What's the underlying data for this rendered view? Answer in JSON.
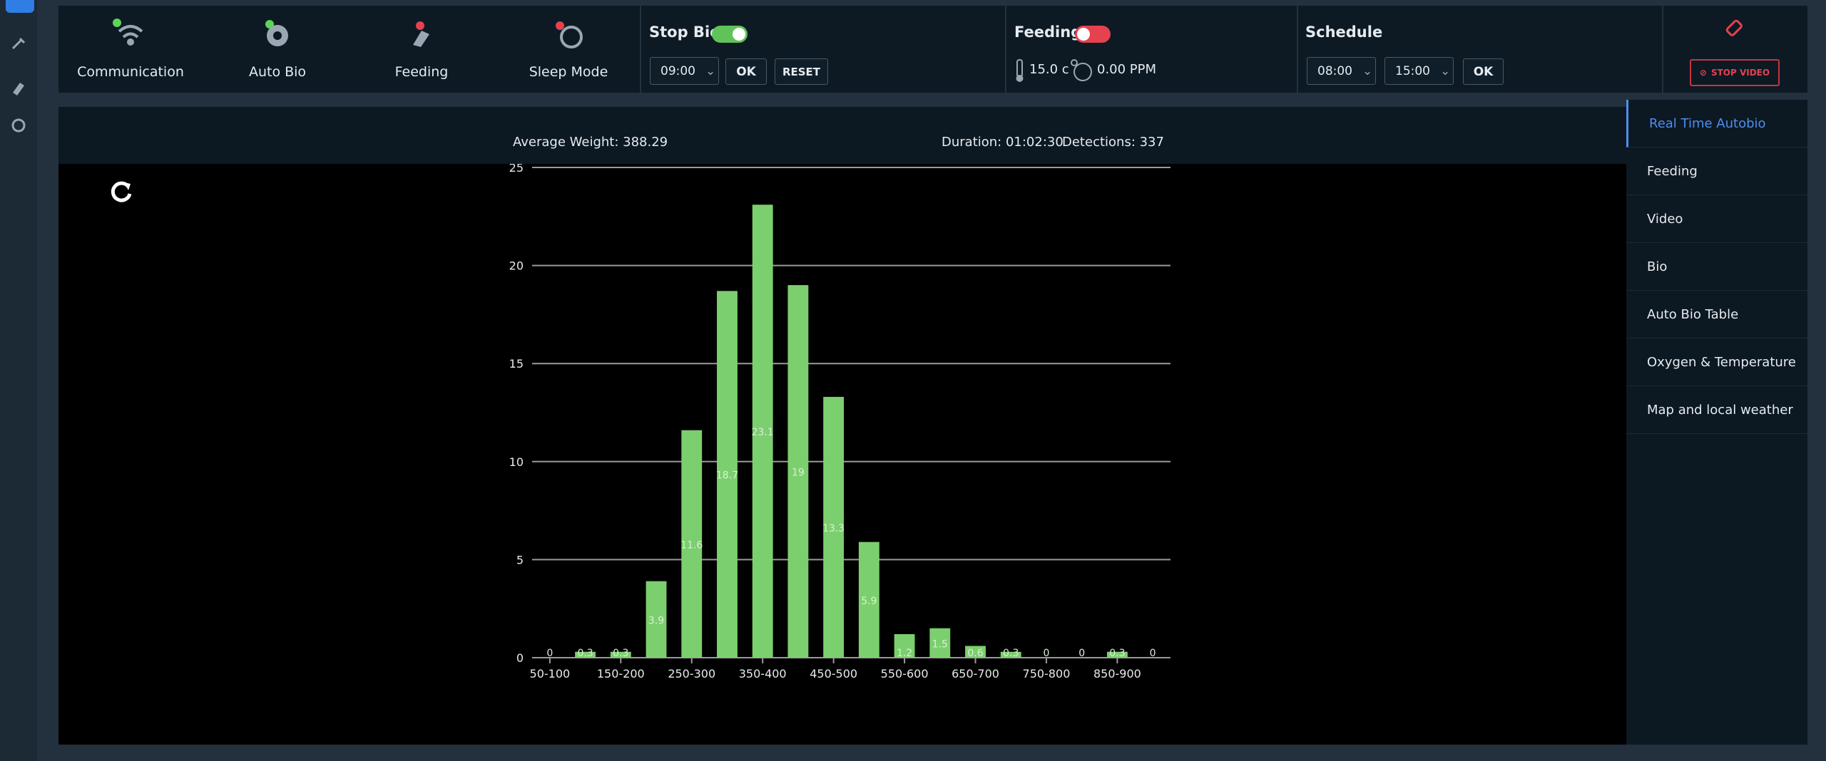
{
  "status": [
    {
      "label": "Communication"
    },
    {
      "label": "Auto Bio"
    },
    {
      "label": "Feeding"
    },
    {
      "label": "Sleep Mode"
    }
  ],
  "stop_bio": {
    "title": "Stop Bio",
    "time": "09:00",
    "ok": "OK",
    "reset": "RESET"
  },
  "feeding": {
    "title": "Feeding",
    "temperature": "15.0 c",
    "oxygen": "0.00 PPM"
  },
  "schedule": {
    "title": "Schedule",
    "start": "08:00",
    "end": "15:00",
    "ok": "OK"
  },
  "stop_video": "STOP VIDEO",
  "stats": {
    "average_weight": "Average Weight: 388.29",
    "duration": "Duration: 01:02:30",
    "detections": "Detections: 337"
  },
  "menu": [
    "Real Time Autobio",
    "Feeding",
    "Video",
    "Bio",
    "Auto Bio Table",
    "Oxygen & Temperature",
    "Map and local weather"
  ],
  "chart_data": {
    "type": "bar",
    "categories": [
      "50-100",
      null,
      "150-200",
      null,
      "250-300",
      null,
      "350-400",
      null,
      "450-500",
      null,
      "550-600",
      null,
      "650-700",
      null,
      "750-800",
      null,
      "850-900",
      null
    ],
    "values": [
      0,
      0.3,
      0.3,
      3.9,
      11.6,
      18.7,
      23.1,
      19,
      13.3,
      5.9,
      1.2,
      1.5,
      0.6,
      0.3,
      0,
      0,
      0.3,
      0
    ],
    "color": "#7ccf6e",
    "ylim": [
      0,
      25
    ],
    "yticks": [
      0,
      5,
      10,
      15,
      20,
      25
    ],
    "grid": true
  }
}
